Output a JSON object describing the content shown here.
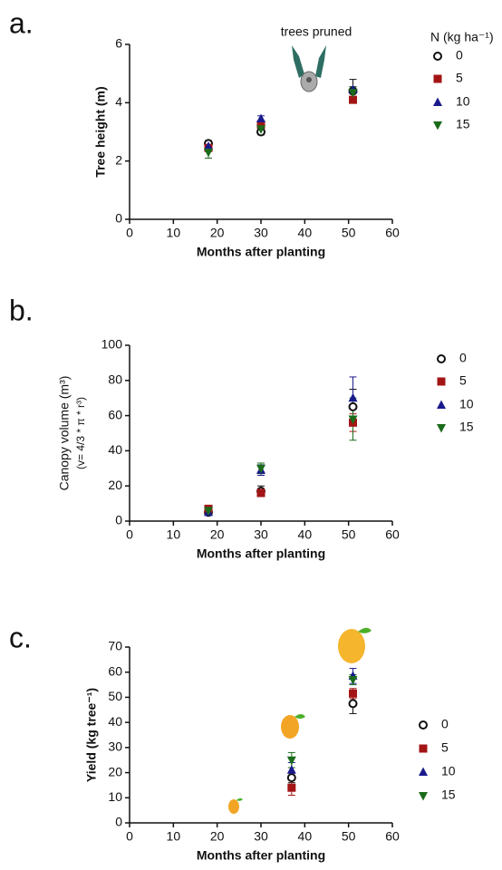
{
  "chart_data": [
    {
      "type": "scatter",
      "panel_label": "a.",
      "annotation": "trees pruned",
      "x_label": "Months after planting",
      "y_label": "Tree height (m)",
      "legend_title": "N (kg ha⁻¹)",
      "x": [
        18,
        30,
        51
      ],
      "xlim": [
        0,
        60
      ],
      "xticks": [
        0,
        10,
        20,
        30,
        40,
        50,
        60
      ],
      "ylim": [
        0,
        6
      ],
      "yticks": [
        0,
        2,
        4,
        6
      ],
      "series": [
        {
          "name": "0",
          "color": "#111111",
          "marker": "circle-open",
          "values": [
            2.6,
            3.0,
            4.4
          ],
          "errors": [
            0.1,
            0.1,
            0.4
          ]
        },
        {
          "name": "5",
          "color": "#a31515",
          "marker": "square",
          "values": [
            2.45,
            3.25,
            4.1
          ],
          "errors": [
            0.1,
            0.1,
            0.1
          ]
        },
        {
          "name": "10",
          "color": "#1a1a8c",
          "marker": "triangle-up",
          "values": [
            2.5,
            3.45,
            4.45
          ],
          "errors": [
            0.1,
            0.1,
            0.1
          ]
        },
        {
          "name": "15",
          "color": "#1a6b1a",
          "marker": "triangle-down",
          "values": [
            2.3,
            3.1,
            4.35
          ],
          "errors": [
            0.2,
            0.1,
            0.2
          ]
        }
      ]
    },
    {
      "type": "scatter",
      "panel_label": "b.",
      "x_label": "Months after planting",
      "y_label": "Canopy volume (m³)",
      "y_sublabel": "(v= 4/3 * π * r³)",
      "x": [
        18,
        30,
        51
      ],
      "xlim": [
        0,
        60
      ],
      "xticks": [
        0,
        10,
        20,
        30,
        40,
        50,
        60
      ],
      "ylim": [
        0,
        100
      ],
      "yticks": [
        0,
        20,
        40,
        60,
        80,
        100
      ],
      "series": [
        {
          "name": "0",
          "color": "#111111",
          "marker": "circle-open",
          "values": [
            5,
            17,
            65
          ],
          "errors": [
            1,
            3,
            10
          ]
        },
        {
          "name": "5",
          "color": "#a31515",
          "marker": "square",
          "values": [
            7,
            16,
            56
          ],
          "errors": [
            1,
            2,
            5
          ]
        },
        {
          "name": "10",
          "color": "#1a1a8c",
          "marker": "triangle-up",
          "values": [
            5,
            29,
            70
          ],
          "errors": [
            1,
            3,
            12
          ]
        },
        {
          "name": "15",
          "color": "#1a6b1a",
          "marker": "triangle-down",
          "values": [
            6,
            30,
            58
          ],
          "errors": [
            1,
            3,
            12
          ]
        }
      ]
    },
    {
      "type": "scatter",
      "panel_label": "c.",
      "x_label": "Months after planting",
      "y_label": "Yield (kg tree⁻¹)",
      "x": [
        37,
        51
      ],
      "xlim": [
        0,
        60
      ],
      "xticks": [
        0,
        10,
        20,
        30,
        40,
        50,
        60
      ],
      "ylim": [
        0,
        70
      ],
      "yticks": [
        0,
        10,
        20,
        30,
        40,
        50,
        60,
        70
      ],
      "series": [
        {
          "name": "0",
          "color": "#111111",
          "marker": "circle-open",
          "values": [
            18,
            47.5
          ],
          "errors": [
            2,
            4
          ]
        },
        {
          "name": "5",
          "color": "#a31515",
          "marker": "square",
          "values": [
            14,
            51.5
          ],
          "errors": [
            3,
            2
          ]
        },
        {
          "name": "10",
          "color": "#1a1a8c",
          "marker": "triangle-up",
          "values": [
            21,
            58.5
          ],
          "errors": [
            3,
            3
          ]
        },
        {
          "name": "15",
          "color": "#1a6b1a",
          "marker": "triangle-down",
          "values": [
            25,
            57
          ],
          "errors": [
            3,
            2
          ]
        }
      ]
    }
  ]
}
